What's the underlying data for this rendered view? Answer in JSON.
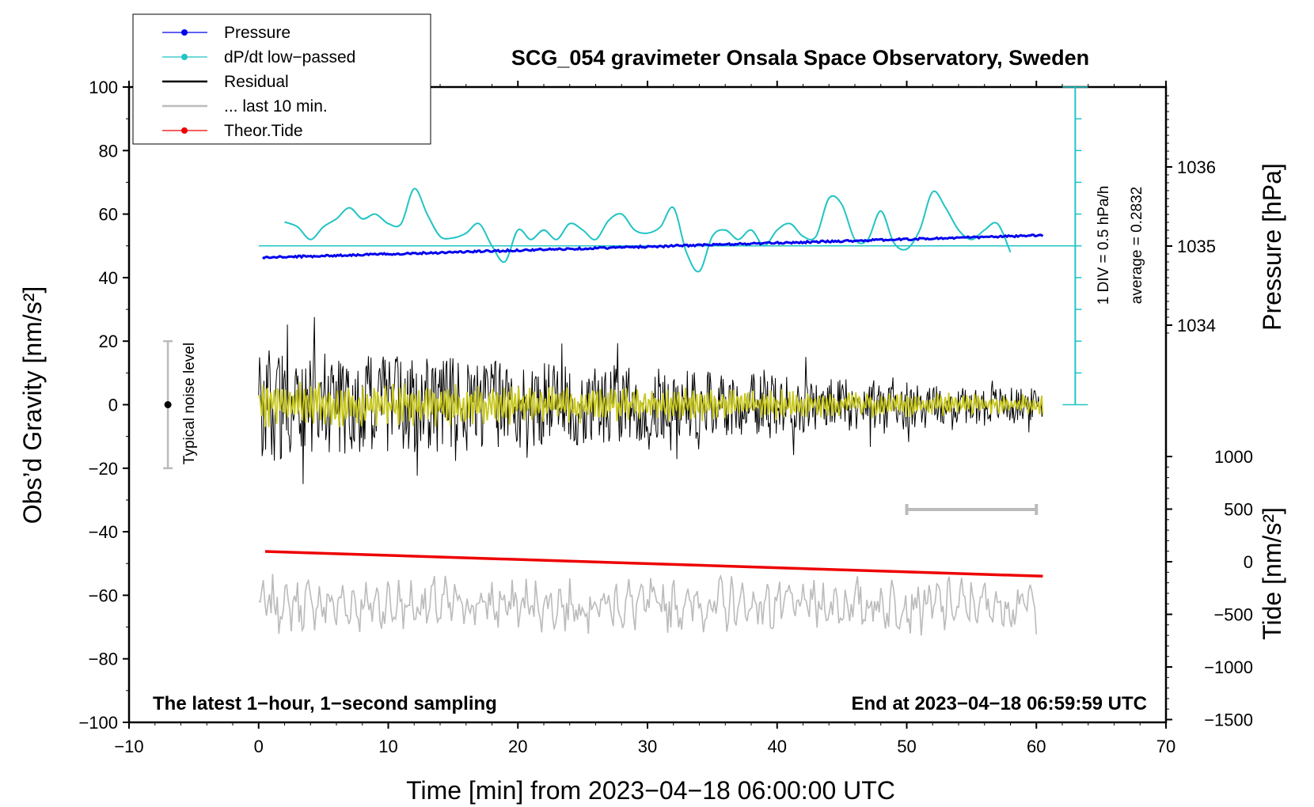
{
  "chart_data": {
    "type": "line",
    "title": "SCG_054 gravimeter Onsala Space Observatory, Sweden",
    "xlabel": "Time [min] from 2023−04−18 06:00:00 UTC",
    "ylabel_left": "Obs’d Gravity [nm/s²]",
    "ylabel_right_top": "Pressure [hPa]",
    "ylabel_right_bottom": "Tide [nm/s²]",
    "xlim": [
      -10,
      70
    ],
    "ylim": [
      -100,
      100
    ],
    "xticks": [
      -10,
      0,
      10,
      20,
      30,
      40,
      50,
      60,
      70
    ],
    "xtick_labels": [
      "−10",
      "0",
      "10",
      "20",
      "30",
      "40",
      "50",
      "60",
      "70"
    ],
    "yticks": [
      -100,
      -80,
      -60,
      -40,
      -20,
      0,
      20,
      40,
      60,
      80,
      100
    ],
    "ytick_labels": [
      "−100",
      "−80",
      "−60",
      "−40",
      "−20",
      "0",
      "20",
      "40",
      "60",
      "80",
      "100"
    ],
    "pressure_ticks": [
      1034,
      1035,
      1036
    ],
    "pressure_tick_labels": [
      "1034",
      "1035",
      "1036"
    ],
    "tide_ticks": [
      1000,
      500,
      0,
      -500,
      -1000,
      -1500
    ],
    "tide_tick_labels": [
      "1000",
      "500",
      "0",
      "−500",
      "−1000",
      "−1500"
    ],
    "annotations": {
      "bottom_left": "The latest 1−hour, 1−second sampling",
      "bottom_right": "End at 2023−04−18 06:59:59 UTC",
      "noise_label": "Typical noise level",
      "noise_range": [
        -20,
        20
      ],
      "noise_x": -7,
      "scale_div": "1 DIV = 0.5 hPa/h",
      "scale_avg": "average = 0.2832",
      "last10_bar": [
        50,
        60
      ],
      "last10_y": -33
    },
    "legend": {
      "position": "top-left",
      "entries": [
        {
          "label": "Pressure",
          "color": "#0000ee"
        },
        {
          "label": "dP/dt low−passed",
          "color": "#22c4c4"
        },
        {
          "label": "Residual",
          "color": "#000000"
        },
        {
          "label": "... last 10 min.",
          "color": "#bbbbbb"
        },
        {
          "label": "Theor.Tide",
          "color": "#ee0000"
        }
      ]
    },
    "series": [
      {
        "name": "Pressure",
        "color": "#0000ee",
        "x_range": [
          0.3,
          60.5
        ],
        "start": 46.3,
        "end": 53.3,
        "noise": 0.6
      },
      {
        "name": "dP/dt low−passed",
        "color": "#22c4c4",
        "x": [
          2,
          3,
          4,
          5,
          6,
          7,
          8,
          9,
          10,
          11,
          12,
          13,
          14,
          15,
          16,
          17,
          18,
          19,
          20,
          21,
          22,
          23,
          24,
          25,
          26,
          27,
          28,
          29,
          30,
          31,
          32,
          33,
          34,
          35,
          36,
          37,
          38,
          39,
          40,
          41,
          42,
          43,
          44,
          45,
          46,
          47,
          48,
          49,
          50,
          51,
          52,
          53,
          54,
          55,
          56,
          57,
          58
        ],
        "values": [
          57.5,
          56,
          52,
          56,
          58.5,
          62,
          58.5,
          60,
          57,
          57,
          68,
          60,
          53,
          52.5,
          54,
          57,
          50,
          45,
          55,
          52,
          55,
          52,
          57,
          55,
          52,
          58,
          60,
          55,
          54,
          56,
          62,
          48,
          42,
          53,
          55,
          52,
          55,
          50,
          55,
          57,
          53,
          53,
          65,
          63,
          52,
          52,
          61,
          51,
          49,
          55,
          67,
          62,
          55,
          52,
          55,
          57,
          48
        ]
      },
      {
        "name": "Residual",
        "color": "#000000",
        "x_range": [
          0,
          60.5
        ],
        "amplitude_start": 18,
        "amplitude_end": 5
      },
      {
        "name": "Residual low−passed",
        "color": "#c8c820",
        "x_range": [
          0,
          60.5
        ],
        "amplitude_start": 7,
        "amplitude_end": 3
      },
      {
        "name": "... last 10 min.",
        "color": "#bbbbbb",
        "x_range": [
          0,
          60
        ],
        "baseline": -63,
        "amplitude": 7
      },
      {
        "name": "Theor.Tide",
        "color": "#ee0000",
        "x": [
          0.5,
          60.5
        ],
        "values": [
          -46.2,
          -54
        ]
      }
    ]
  }
}
